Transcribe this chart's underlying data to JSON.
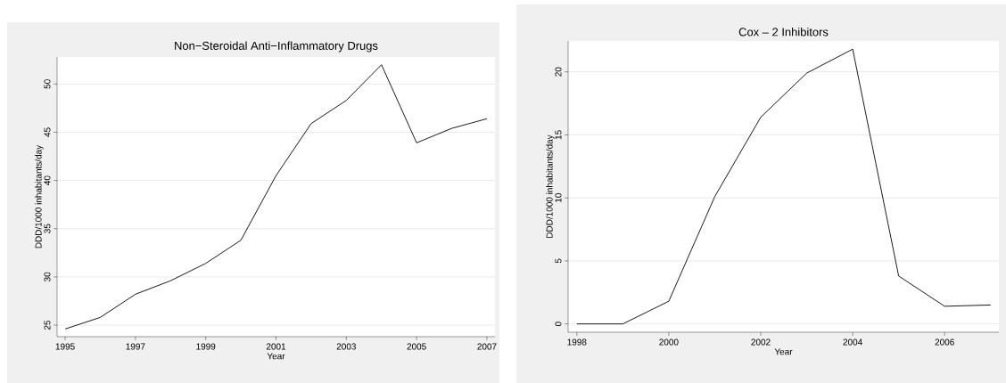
{
  "chart_data": [
    {
      "type": "line",
      "title": "Non−Steroidal Anti−Inflammatory Drugs",
      "xlabel": "Year",
      "ylabel": "DDD/1000 inhabitants/day",
      "color": "#000000",
      "x": [
        1995,
        1996,
        1997,
        1998,
        1999,
        2000,
        2001,
        2002,
        2003,
        2004,
        2005,
        2006,
        2007
      ],
      "values": [
        24.6,
        25.8,
        28.2,
        29.6,
        31.4,
        33.8,
        40.5,
        45.9,
        48.3,
        52.0,
        43.9,
        45.4,
        46.4
      ],
      "xlim": [
        1994.77,
        2007.23
      ],
      "ylim": [
        23.8,
        52.8
      ],
      "xticks": [
        1995,
        1997,
        1999,
        2001,
        2003,
        2005,
        2007
      ],
      "yticks": [
        25,
        30,
        35,
        40,
        45,
        50
      ],
      "grid": "y"
    },
    {
      "type": "line",
      "title": "Cox – 2 Inhibitors",
      "xlabel": "Year",
      "ylabel": "DDD/1000 inhabitants/day",
      "color": "#000000",
      "x": [
        1998,
        1999,
        2000,
        2001,
        2002,
        2003,
        2004,
        2005,
        2006,
        2007
      ],
      "values": [
        0,
        0,
        1.8,
        10.1,
        16.4,
        19.9,
        21.8,
        3.8,
        1.4,
        1.5
      ],
      "xlim": [
        1997.81,
        2007.18
      ],
      "ylim": [
        -0.66,
        22.45
      ],
      "xticks": [
        1998,
        2000,
        2002,
        2004,
        2006
      ],
      "yticks": [
        0,
        5,
        10,
        15,
        20
      ],
      "grid": "y"
    }
  ]
}
